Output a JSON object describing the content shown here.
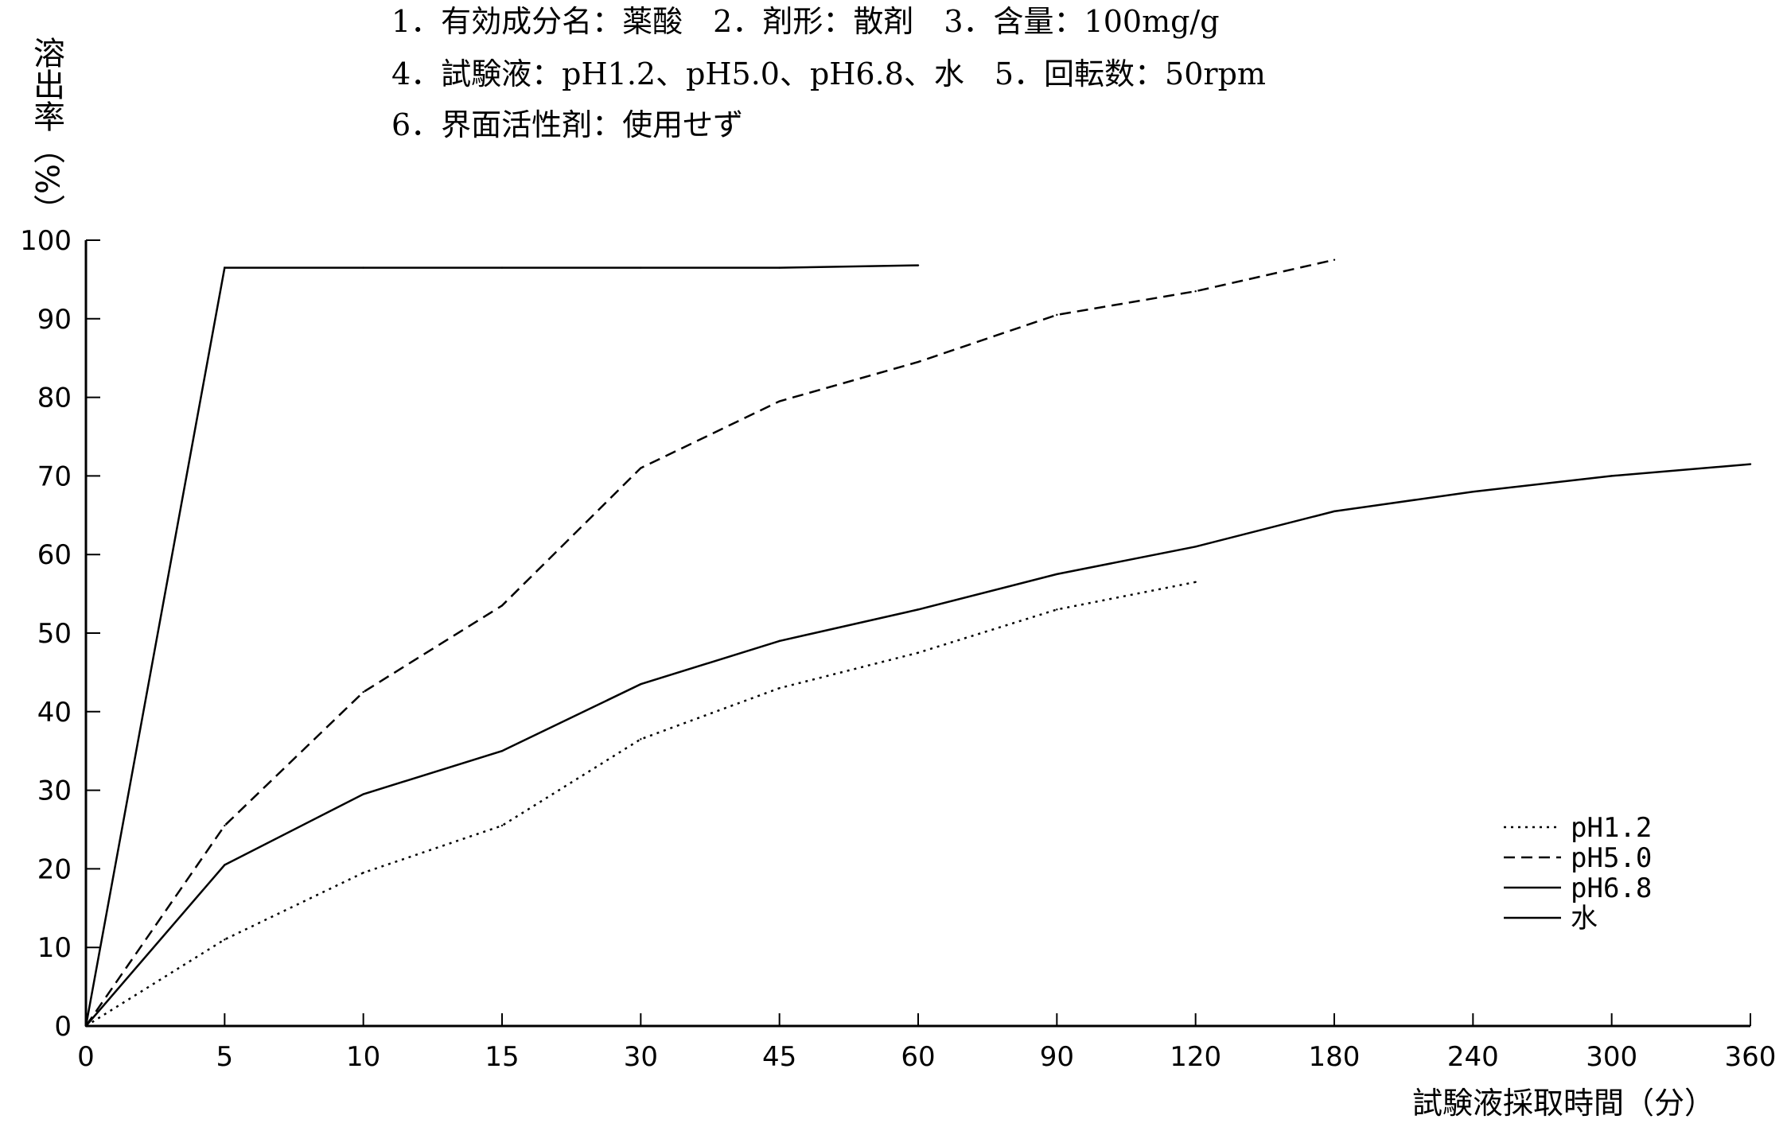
{
  "conditions": [
    "1．有効成分名：薬酸　2．剤形：散剤　3．含量：100mg/g",
    "4．試験液：pH1.2、pH5.0、pH6.8、水　5．回転数：50rpm",
    "6．界面活性剤：使用せず"
  ],
  "chart_data": {
    "type": "line",
    "title": "",
    "ylabel": "溶出率（%）",
    "xlabel": "試験液採取時間（分）",
    "ylim": [
      0,
      100
    ],
    "yticks": [
      "0",
      "10",
      "20",
      "30",
      "40",
      "50",
      "60",
      "70",
      "80",
      "90",
      "100"
    ],
    "categories": [
      "0",
      "5",
      "10",
      "15",
      "30",
      "45",
      "60",
      "90",
      "120",
      "180",
      "240",
      "300",
      "360"
    ],
    "grid": false,
    "legend_position": "bottom-right",
    "series": [
      {
        "name": "pH1.2",
        "style": "dotted",
        "values": [
          0,
          11,
          19.5,
          25.5,
          36.5,
          43,
          47.5,
          53,
          56.5,
          null,
          null,
          null,
          null
        ]
      },
      {
        "name": "pH5.0",
        "style": "dashed",
        "values": [
          0,
          25.5,
          42.5,
          53.5,
          71,
          79.5,
          84.5,
          90.5,
          93.5,
          97.5,
          null,
          null,
          null
        ]
      },
      {
        "name": "pH6.8",
        "style": "solid",
        "values": [
          0,
          20.5,
          29.5,
          35,
          43.5,
          49,
          53,
          57.5,
          61,
          65.5,
          68,
          70,
          71.5
        ]
      },
      {
        "name": "水",
        "style": "solid",
        "values": [
          0,
          96.5,
          96.5,
          96.5,
          96.5,
          96.5,
          96.8,
          null,
          null,
          null,
          null,
          null,
          null
        ]
      }
    ]
  }
}
